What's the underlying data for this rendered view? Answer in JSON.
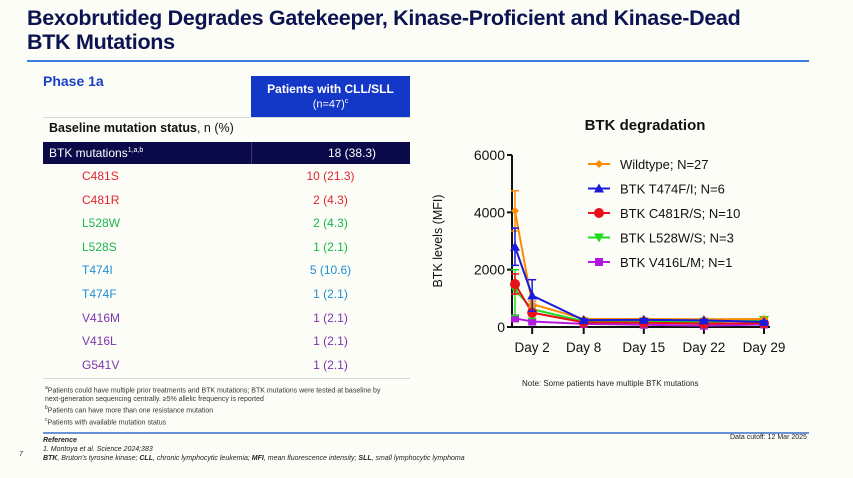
{
  "slide": {
    "title_line1": "Bexobrutideg Degrades Gatekeeper, Kinase-Proficient and Kinase-Dead",
    "title_line2": "BTK Mutations",
    "phase": "Phase 1a",
    "page_number": "7",
    "data_cutoff": "Data cutoff: 12 Mar 2025"
  },
  "table": {
    "header_line1": "Patients with CLL/SLL",
    "header_line2": "(n=47)",
    "header_sup": "c",
    "baseline_label_bold": "Baseline mutation status",
    "baseline_label_rest": ", n (%)",
    "summary": {
      "label": "BTK mutations",
      "sup": "1,a,b",
      "value": "18 (38.3)"
    },
    "rows": [
      {
        "label": "C481S",
        "value": "10 (21.3)",
        "color": "#e3262b"
      },
      {
        "label": "C481R",
        "value": "2 (4.3)",
        "color": "#e3262b"
      },
      {
        "label": "L528W",
        "value": "2 (4.3)",
        "color": "#19b84a"
      },
      {
        "label": "L528S",
        "value": "1 (2.1)",
        "color": "#19b84a"
      },
      {
        "label": "T474I",
        "value": "5 (10.6)",
        "color": "#1f8fd0"
      },
      {
        "label": "T474F",
        "value": "1 (2.1)",
        "color": "#1f8fd0"
      },
      {
        "label": "V416M",
        "value": "1 (2.1)",
        "color": "#7b35b0"
      },
      {
        "label": "V416L",
        "value": "1 (2.1)",
        "color": "#7b35b0"
      },
      {
        "label": "G541V",
        "value": "1 (2.1)",
        "color": "#7b35b0"
      }
    ]
  },
  "footnotes": {
    "a_sup": "a",
    "a_line1": "Patients could have multiple prior treatments and BTK mutations; BTK mutations were tested at baseline by",
    "a_line2": "next-generation sequencing centrally. ≥5% allelic frequency is reported",
    "b_sup": "b",
    "b": "Patients can have more than one resistance mutation",
    "c_sup": "c",
    "c": "Patients with available mutation status"
  },
  "reference": {
    "heading": "Reference",
    "item": "1. Montoya et al. Science 2024;383",
    "abbr": [
      {
        "term": "BTK",
        "def": ", Bruton’s tyrosine kinase; "
      },
      {
        "term": "CLL",
        "def": ", chronic lymphocytic leukemia; "
      },
      {
        "term": "MFI",
        "def": ", mean fluorescence intensity; "
      },
      {
        "term": "SLL",
        "def": ", small lymphocytic lymphoma"
      }
    ]
  },
  "chart_note": "Note: Some patients have multiple BTK mutations",
  "chart_data": {
    "type": "line",
    "title": "BTK degradation",
    "xlabel": "",
    "ylabel": "BTK levels (MFI)",
    "ylim": [
      0,
      6000
    ],
    "yticks": [
      0,
      2000,
      4000,
      6000
    ],
    "xlim": [
      0,
      29
    ],
    "x": [
      0,
      2,
      8,
      15,
      22,
      29
    ],
    "xticks": [
      2,
      8,
      15,
      22,
      29
    ],
    "xtick_labels": [
      "Day 2",
      "Day 8",
      "Day 15",
      "Day 22",
      "Day 29"
    ],
    "legend_position": "top-right",
    "series": [
      {
        "name": "Wildtype; N=27",
        "color": "#ff8c00",
        "marker": "diamond",
        "values": [
          4050,
          800,
          280,
          280,
          270,
          280
        ],
        "err_upper": [
          4750,
          900,
          320,
          310,
          300,
          310
        ],
        "err_lower": [
          3350,
          700,
          240,
          250,
          240,
          250
        ]
      },
      {
        "name": "BTK T474F/I; N=6",
        "color": "#1a1adb",
        "marker": "triangle",
        "values": [
          2800,
          1100,
          240,
          250,
          230,
          180
        ],
        "err_upper": [
          3450,
          1650,
          280,
          290,
          270,
          220
        ],
        "err_lower": [
          2150,
          550,
          200,
          210,
          190,
          140
        ]
      },
      {
        "name": "BTK C481R/S; N=10",
        "color": "#e8101a",
        "marker": "circle",
        "values": [
          1500,
          500,
          160,
          150,
          120,
          130
        ],
        "err_upper": [
          1850,
          600,
          190,
          180,
          150,
          160
        ],
        "err_lower": [
          1150,
          400,
          130,
          120,
          90,
          100
        ]
      },
      {
        "name": "BTK L528W/S; N=3",
        "color": "#1edc1e",
        "marker": "triangle-down",
        "values": [
          1300,
          620,
          200,
          200,
          170,
          250
        ],
        "err_upper": [
          2000,
          800,
          230,
          230,
          200,
          290
        ],
        "err_lower": [
          400,
          300,
          170,
          170,
          140,
          210
        ]
      },
      {
        "name": "BTK V416L/M; N=1",
        "color": "#b01adf",
        "marker": "square",
        "values": [
          300,
          190,
          110,
          80,
          50,
          90
        ],
        "err_upper": [
          300,
          190,
          110,
          80,
          50,
          90
        ],
        "err_lower": [
          300,
          190,
          110,
          80,
          50,
          90
        ]
      }
    ]
  }
}
